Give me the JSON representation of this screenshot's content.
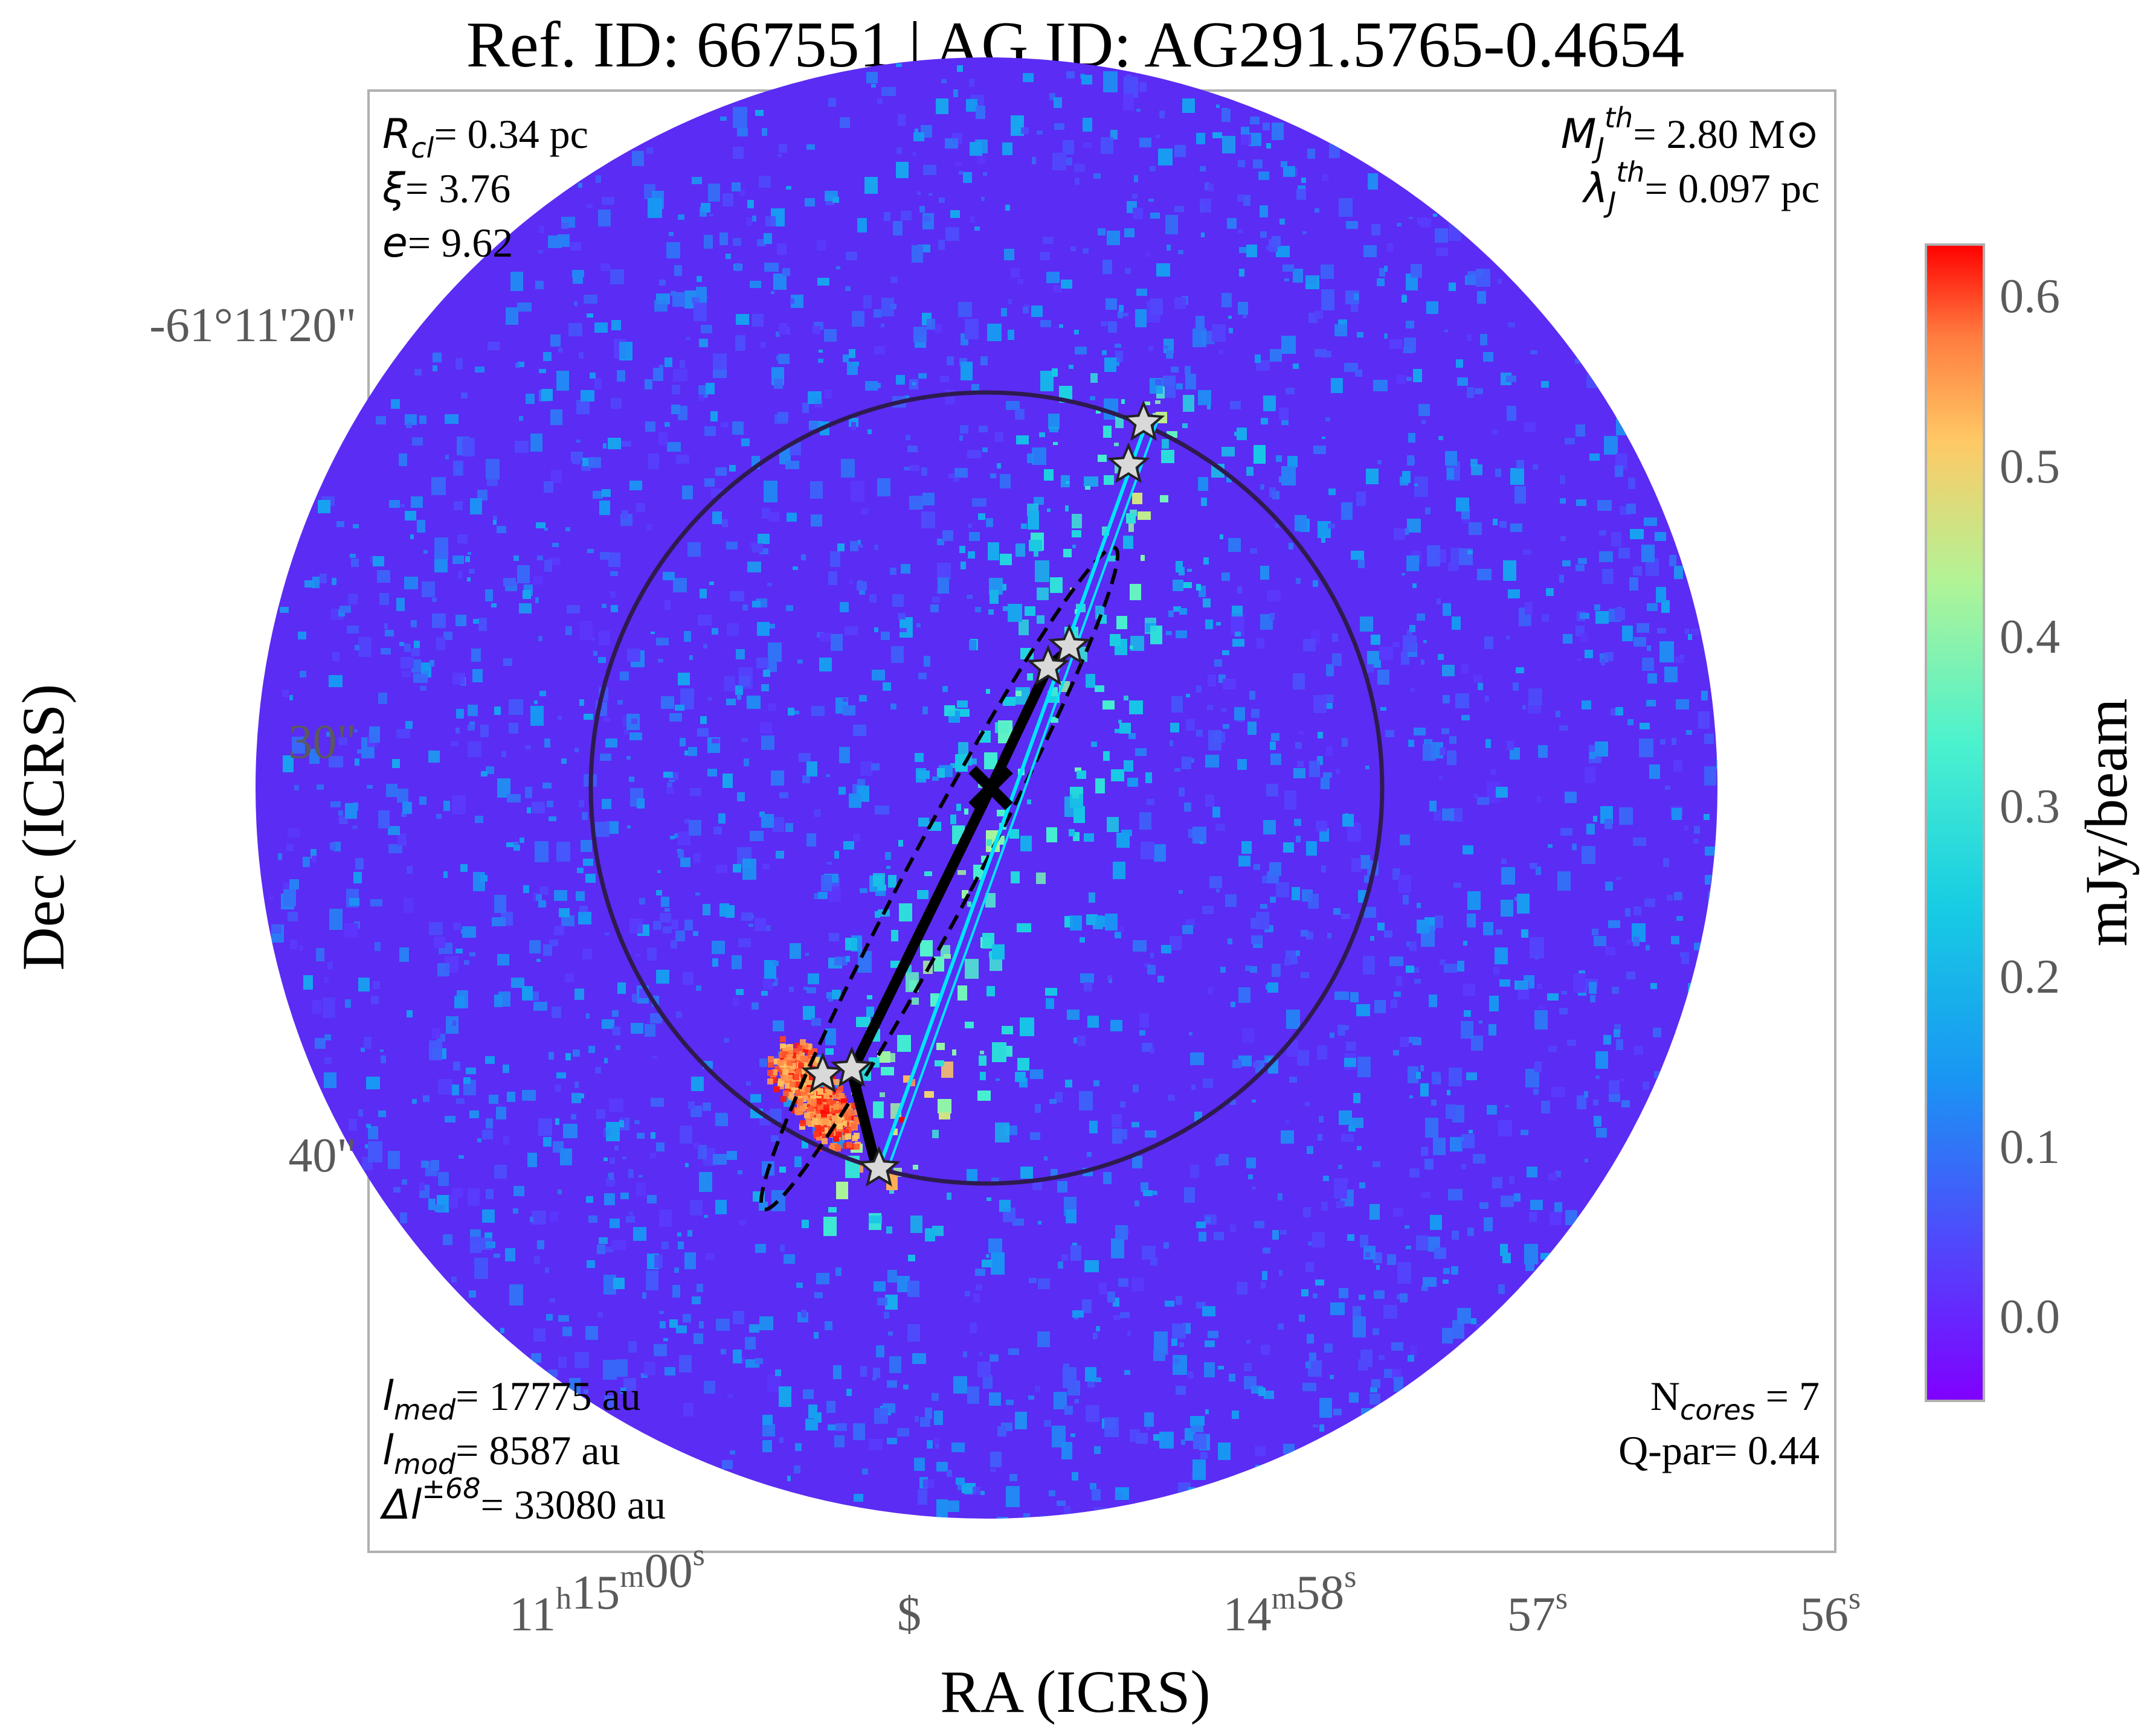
{
  "title": "Ref. ID: 667551 | AG ID: AG291.5765-0.4654",
  "chart_data": {
    "type": "heatmap",
    "xlabel": "RA (ICRS)",
    "ylabel": "Dec (ICRS)",
    "x_ticks": [
      {
        "h": "11",
        "hsup": "h",
        "m": "15",
        "msup": "m",
        "s": "00",
        "ssup": "s"
      },
      {
        "s": "$",
        "ssup": ""
      },
      {
        "m": "14",
        "msup": "m",
        "s": "58",
        "ssup": "s"
      },
      {
        "s": "57",
        "ssup": "s"
      },
      {
        "s": "56",
        "ssup": "s"
      }
    ],
    "y_ticks": [
      "-61°11'20\"",
      "30\"",
      "40\""
    ],
    "colorbar": {
      "label": "mJy/beam",
      "colormap": "rainbow",
      "range": [
        -0.05,
        0.63
      ],
      "ticks": [
        "0.0",
        "0.1",
        "0.2",
        "0.3",
        "0.4",
        "0.5",
        "0.6"
      ],
      "tick_values": [
        0.0,
        0.1,
        0.2,
        0.3,
        0.4,
        0.5,
        0.6
      ]
    },
    "colors": {
      "circle": "#2d1b4e",
      "spine": "#000000",
      "fit_line": "#00e5ff",
      "star_fill": "#d9d9d9",
      "star_edge": "#222222"
    },
    "annotations": {
      "top_left": [
        {
          "sym": "R",
          "sub": "cl",
          "sup": "",
          "val": "= 0.34 pc"
        },
        {
          "sym": "ξ",
          "sub": "",
          "sup": "",
          "val": "= 3.76"
        },
        {
          "sym": "e",
          "sub": "",
          "sup": "",
          "val": "= 9.62"
        }
      ],
      "top_right": [
        {
          "sym": "M",
          "sub": "J",
          "sup": "th",
          "val": "= 2.80 M⊙"
        },
        {
          "sym": "λ",
          "sub": "J",
          "sup": "th",
          "val": "= 0.097 pc"
        }
      ],
      "bottom_left": [
        {
          "sym": "l",
          "sub": "med",
          "sup": "",
          "val": "= 17775 au"
        },
        {
          "sym": "l",
          "sub": "mod",
          "sup": "",
          "val": "= 8587 au"
        },
        {
          "sym": "Δl",
          "sub": "",
          "sup": "±68",
          "val": "= 33080 au"
        }
      ],
      "bottom_right": [
        {
          "pre": "N",
          "sub": "cores",
          "val": " = 7"
        },
        {
          "pre": "Q-par= 0.44",
          "sub": "",
          "val": ""
        }
      ]
    },
    "cores_count": 7
  }
}
